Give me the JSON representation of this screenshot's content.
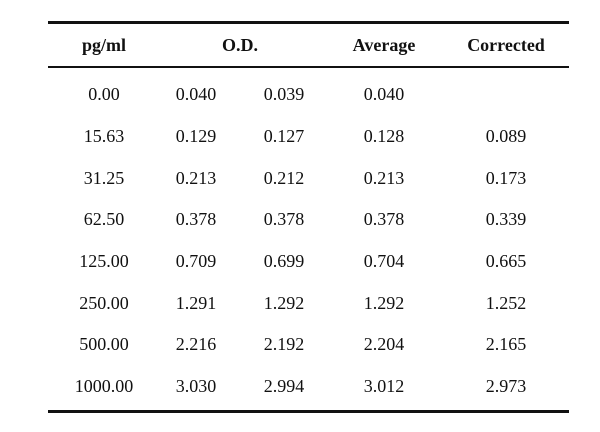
{
  "table": {
    "headers": {
      "pg": "pg/ml",
      "od": "O.D.",
      "average": "Average",
      "corrected": "Corrected"
    },
    "rows": [
      {
        "pg": "0.00",
        "od1": "0.040",
        "od2": "0.039",
        "average": "0.040",
        "corrected": ""
      },
      {
        "pg": "15.63",
        "od1": "0.129",
        "od2": "0.127",
        "average": "0.128",
        "corrected": "0.089"
      },
      {
        "pg": "31.25",
        "od1": "0.213",
        "od2": "0.212",
        "average": "0.213",
        "corrected": "0.173"
      },
      {
        "pg": "62.50",
        "od1": "0.378",
        "od2": "0.378",
        "average": "0.378",
        "corrected": "0.339"
      },
      {
        "pg": "125.00",
        "od1": "0.709",
        "od2": "0.699",
        "average": "0.704",
        "corrected": "0.665"
      },
      {
        "pg": "250.00",
        "od1": "1.291",
        "od2": "1.292",
        "average": "1.292",
        "corrected": "1.252"
      },
      {
        "pg": "500.00",
        "od1": "2.216",
        "od2": "2.192",
        "average": "2.204",
        "corrected": "2.165"
      },
      {
        "pg": "1000.00",
        "od1": "3.030",
        "od2": "2.994",
        "average": "3.012",
        "corrected": "2.973"
      }
    ]
  }
}
